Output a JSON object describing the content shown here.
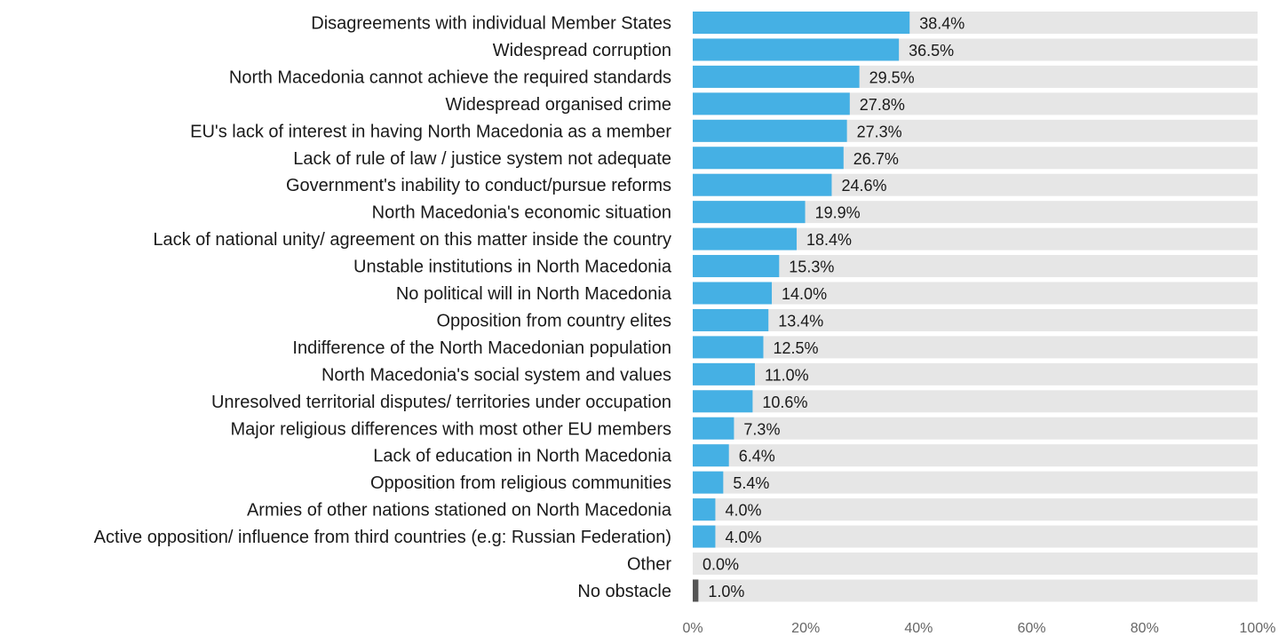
{
  "chart_data": {
    "type": "bar",
    "orientation": "horizontal",
    "categories": [
      "Disagreements with individual Member States",
      "Widespread corruption",
      "North Macedonia cannot achieve the required standards",
      "Widespread organised crime",
      "EU's lack of interest in having North Macedonia as a member",
      "Lack of rule of law / justice system not adequate",
      "Government's inability to conduct/pursue reforms",
      "North Macedonia's economic situation",
      "Lack of national unity/ agreement on this matter inside the country",
      "Unstable institutions in North Macedonia",
      "No political will in North Macedonia",
      "Opposition from country elites",
      "Indifference of the North Macedonian population",
      "North Macedonia's social system and values",
      "Unresolved territorial disputes/ territories under occupation",
      "Major religious differences with most other EU members",
      "Lack of education in North Macedonia",
      "Opposition from religious communities",
      "Armies of other nations stationed on North Macedonia",
      "Active opposition/ influence from third countries (e.g: Russian Federation)",
      "Other",
      "No obstacle"
    ],
    "values": [
      38.4,
      36.5,
      29.5,
      27.8,
      27.3,
      26.7,
      24.6,
      19.9,
      18.4,
      15.3,
      14.0,
      13.4,
      12.5,
      11.0,
      10.6,
      7.3,
      6.4,
      5.4,
      4.0,
      4.0,
      0.0,
      1.0
    ],
    "value_labels": [
      "38.4%",
      "36.5%",
      "29.5%",
      "27.8%",
      "27.3%",
      "26.7%",
      "24.6%",
      "19.9%",
      "18.4%",
      "15.3%",
      "14.0%",
      "13.4%",
      "12.5%",
      "11.0%",
      "10.6%",
      "7.3%",
      "6.4%",
      "5.4%",
      "4.0%",
      "4.0%",
      "0.0%",
      "1.0%"
    ],
    "bar_colors": [
      "#45b0e4",
      "#45b0e4",
      "#45b0e4",
      "#45b0e4",
      "#45b0e4",
      "#45b0e4",
      "#45b0e4",
      "#45b0e4",
      "#45b0e4",
      "#45b0e4",
      "#45b0e4",
      "#45b0e4",
      "#45b0e4",
      "#45b0e4",
      "#45b0e4",
      "#45b0e4",
      "#45b0e4",
      "#45b0e4",
      "#45b0e4",
      "#45b0e4",
      "#45b0e4",
      "#555555"
    ],
    "track_color": "#e6e6e6",
    "xlim": [
      0,
      100
    ],
    "xticks": [
      0,
      20,
      40,
      60,
      80,
      100
    ],
    "xtick_labels": [
      "0%",
      "20%",
      "40%",
      "60%",
      "80%",
      "100%"
    ],
    "title": "",
    "xlabel": "",
    "ylabel": "",
    "grid": false,
    "legend": "none"
  }
}
